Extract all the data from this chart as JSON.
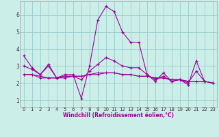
{
  "xlabel": "Windchill (Refroidissement éolien,°C)",
  "background_color": "#cceee8",
  "grid_color": "#99cccc",
  "line_color": "#990099",
  "x_hours": [
    0,
    1,
    2,
    3,
    4,
    5,
    6,
    7,
    8,
    9,
    10,
    11,
    12,
    13,
    14,
    15,
    16,
    17,
    18,
    19,
    20,
    21,
    22,
    23
  ],
  "series1": [
    3.6,
    2.9,
    2.5,
    3.1,
    2.3,
    2.5,
    2.5,
    1.1,
    3.0,
    5.7,
    6.5,
    6.2,
    5.0,
    4.4,
    4.4,
    2.5,
    2.1,
    2.6,
    2.1,
    2.2,
    1.9,
    3.3,
    2.1,
    2.0
  ],
  "series2": [
    2.5,
    2.5,
    2.3,
    2.3,
    2.3,
    2.4,
    2.4,
    2.4,
    2.5,
    2.5,
    2.6,
    2.6,
    2.5,
    2.5,
    2.4,
    2.4,
    2.3,
    2.3,
    2.2,
    2.2,
    2.1,
    2.1,
    2.1,
    2.0
  ],
  "series3": [
    2.5,
    2.5,
    2.4,
    2.3,
    2.3,
    2.3,
    2.4,
    2.4,
    2.5,
    2.6,
    2.6,
    2.6,
    2.5,
    2.5,
    2.4,
    2.4,
    2.3,
    2.3,
    2.2,
    2.2,
    2.1,
    2.1,
    2.1,
    2.0
  ],
  "series4": [
    3.0,
    2.8,
    2.5,
    3.0,
    2.3,
    2.4,
    2.4,
    2.2,
    2.7,
    3.1,
    3.5,
    3.3,
    3.0,
    2.9,
    2.9,
    2.5,
    2.2,
    2.4,
    2.1,
    2.2,
    2.0,
    2.7,
    2.1,
    2.0
  ],
  "ylim": [
    0.6,
    6.8
  ],
  "yticks": [
    1,
    2,
    3,
    4,
    5,
    6
  ],
  "xtick_labels": [
    "0",
    "1",
    "2",
    "3",
    "4",
    "5",
    "6",
    "7",
    "8",
    "9",
    "10",
    "11",
    "12",
    "13",
    "14",
    "15",
    "16",
    "17",
    "18",
    "19",
    "20",
    "21",
    "22",
    "23"
  ],
  "xlabel_fontsize": 5.5,
  "xlabel_color": "#990099",
  "tick_fontsize": 5.0,
  "ytick_fontsize": 5.5
}
